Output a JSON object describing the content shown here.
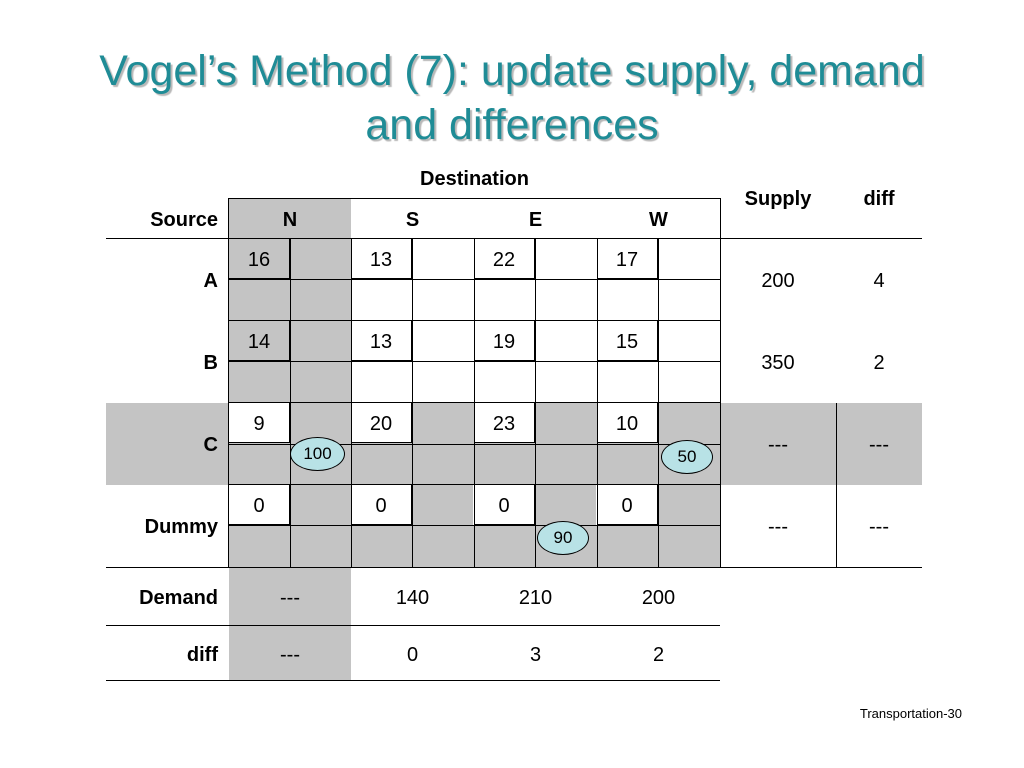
{
  "slide": {
    "title_line1": "Vogel’s Method (7): update supply, demand",
    "title_line2": "and differences",
    "footer": "Transportation-30"
  },
  "table": {
    "header": {
      "destination": "Destination",
      "source": "Source",
      "supply": "Supply",
      "diff": "diff",
      "columns": [
        "N",
        "S",
        "E",
        "W"
      ]
    },
    "rows": [
      {
        "label": "A",
        "costs": [
          "16",
          "13",
          "22",
          "17"
        ],
        "supply": "200",
        "diff": "4"
      },
      {
        "label": "B",
        "costs": [
          "14",
          "13",
          "19",
          "15"
        ],
        "supply": "350",
        "diff": "2"
      },
      {
        "label": "C",
        "costs": [
          "9",
          "20",
          "23",
          "10"
        ],
        "supply": "---",
        "diff": "---"
      },
      {
        "label": "Dummy",
        "costs": [
          "0",
          "0",
          "0",
          "0"
        ],
        "supply": "---",
        "diff": "---"
      }
    ],
    "allocations": [
      {
        "row": "C",
        "column": "N",
        "value": "100"
      },
      {
        "row": "C",
        "column": "W",
        "value": "50"
      },
      {
        "row": "Dummy",
        "column": "E",
        "value": "90"
      }
    ],
    "demand": {
      "label": "Demand",
      "values": [
        "---",
        "140",
        "210",
        "200"
      ]
    },
    "col_diff": {
      "label": "diff",
      "values": [
        "---",
        "0",
        "3",
        "2"
      ]
    },
    "shade_color": "#c4c4c4",
    "allocation_color": "#b8e2e6"
  }
}
